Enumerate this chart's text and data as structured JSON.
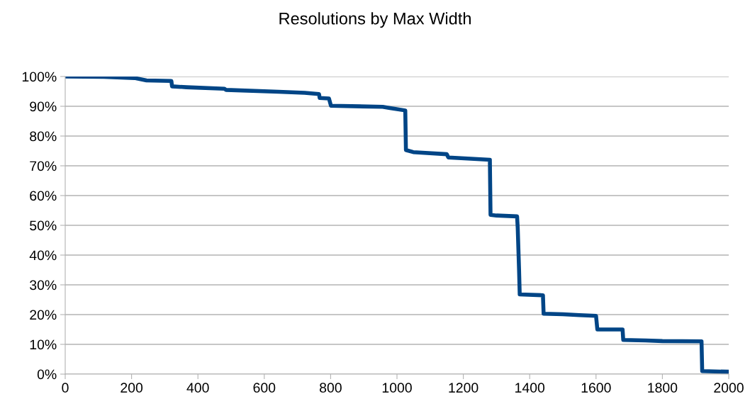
{
  "chart_data": {
    "type": "line",
    "title": "Resolutions by Max Width",
    "series": [
      {
        "color": "#004586",
        "x": [
          0,
          117,
          209,
          245,
          320,
          322,
          366,
          480,
          485,
          643,
          722,
          765,
          767,
          795,
          801,
          957,
          979,
          1025,
          1027,
          1049,
          1150,
          1155,
          1280,
          1282,
          1300,
          1362,
          1364,
          1368,
          1370,
          1440,
          1442,
          1500,
          1550,
          1600,
          1604,
          1680,
          1682,
          1750,
          1800,
          1918,
          1920,
          2000
        ],
        "values": [
          100,
          99.9,
          99.5,
          98.7,
          98.5,
          96.7,
          96.4,
          95.9,
          95.5,
          94.9,
          94.5,
          94.1,
          92.8,
          92.6,
          90.2,
          89.8,
          89.4,
          88.6,
          75.3,
          74.6,
          73.9,
          72.8,
          72,
          53.5,
          53.3,
          53,
          49,
          35,
          26.8,
          26.5,
          20.3,
          20.1,
          19.8,
          19.6,
          15,
          15,
          11.5,
          11.3,
          11.1,
          11,
          1,
          0.8
        ]
      }
    ],
    "xlim": [
      0,
      2000
    ],
    "xticks": [
      0,
      200,
      400,
      600,
      800,
      1000,
      1200,
      1400,
      1600,
      1800,
      2000
    ],
    "ylim": [
      0,
      100
    ],
    "yticks": [
      {
        "value": 0,
        "label": "0%"
      },
      {
        "value": 10,
        "label": "10%"
      },
      {
        "value": 20,
        "label": "20%"
      },
      {
        "value": 30,
        "label": "30%"
      },
      {
        "value": 40,
        "label": "40%"
      },
      {
        "value": 50,
        "label": "50%"
      },
      {
        "value": 60,
        "label": "60%"
      },
      {
        "value": 70,
        "label": "70%"
      },
      {
        "value": 80,
        "label": "80%"
      },
      {
        "value": 90,
        "label": "90%"
      },
      {
        "value": 100,
        "label": "100%"
      }
    ],
    "grid": "y",
    "legend": false
  }
}
